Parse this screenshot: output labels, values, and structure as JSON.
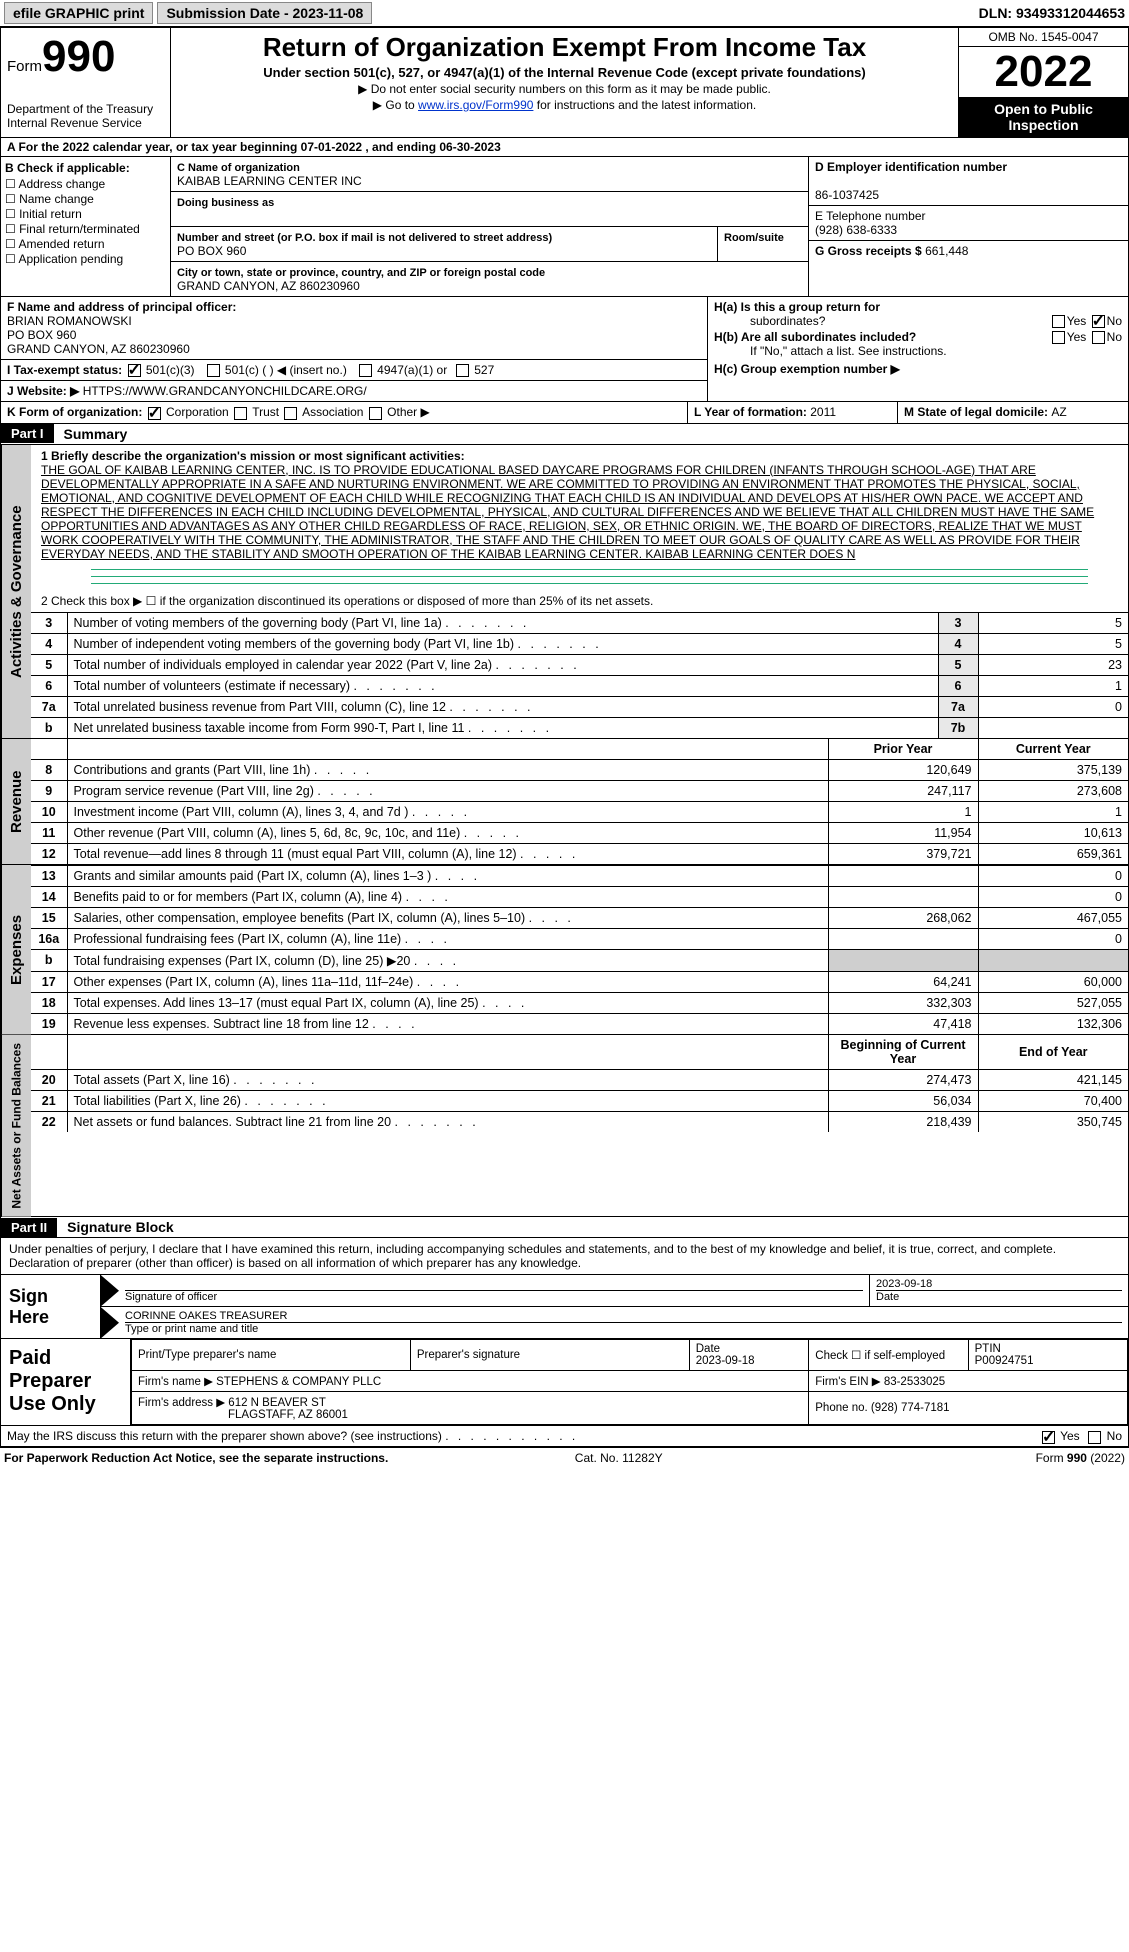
{
  "topbar": {
    "efile": "efile GRAPHIC print",
    "submission_label": "Submission Date - ",
    "submission_date": "2023-11-08",
    "dln_label": "DLN: ",
    "dln": "93493312044653"
  },
  "header": {
    "form_prefix": "Form",
    "form_no": "990",
    "dept": "Department of the Treasury",
    "irs": "Internal Revenue Service",
    "title": "Return of Organization Exempt From Income Tax",
    "sub": "Under section 501(c), 527, or 4947(a)(1) of the Internal Revenue Code (except private foundations)",
    "note1": "▶ Do not enter social security numbers on this form as it may be made public.",
    "note2_pre": "▶ Go to ",
    "note2_link": "www.irs.gov/Form990",
    "note2_post": " for instructions and the latest information.",
    "omb": "OMB No. 1545-0047",
    "year": "2022",
    "open": "Open to Public Inspection"
  },
  "sectionA": "A   For the 2022 calendar year, or tax year beginning 07-01-2022    , and ending 06-30-2023",
  "colB": {
    "hdr": "B Check if applicable:",
    "items": [
      "Address change",
      "Name change",
      "Initial return",
      "Final return/terminated",
      "Amended return",
      "Application pending"
    ]
  },
  "colC": {
    "name_lab": "C Name of organization",
    "name": "KAIBAB LEARNING CENTER INC",
    "dba_lab": "Doing business as",
    "dba": "",
    "addr_lab": "Number and street (or P.O. box if mail is not delivered to street address)",
    "addr": "PO BOX 960",
    "room_lab": "Room/suite",
    "city_lab": "City or town, state or province, country, and ZIP or foreign postal code",
    "city": "GRAND CANYON, AZ  860230960"
  },
  "colD": {
    "d_lab": "D Employer identification number",
    "ein": "86-1037425",
    "e_lab": "E Telephone number",
    "phone": "(928) 638-6333",
    "g_lab": "G Gross receipts $",
    "gross": "661,448"
  },
  "rowF": {
    "f_lab": "F Name and address of principal officer:",
    "name": "BRIAN ROMANOWSKI",
    "l1": "PO BOX 960",
    "l2": "GRAND CANYON, AZ  860230960"
  },
  "rowH": {
    "ha": "H(a)  Is this a group return for",
    "ha2": "subordinates?",
    "hb": "H(b)  Are all subordinates included?",
    "hbnote": "If \"No,\" attach a list. See instructions.",
    "hc": "H(c)  Group exemption number ▶"
  },
  "rowI": {
    "lab": "I   Tax-exempt status:",
    "o1": "501(c)(3)",
    "o2": "501(c) (   ) ◀ (insert no.)",
    "o3": "4947(a)(1) or",
    "o4": "527"
  },
  "rowJ": {
    "lab": "J   Website: ▶",
    "url": "HTTPS://WWW.GRANDCANYONCHILDCARE.ORG/"
  },
  "rowK": {
    "lab": "K Form of organization:",
    "corp": "Corporation",
    "trust": "Trust",
    "assoc": "Association",
    "other": "Other ▶",
    "l_lab": "L Year of formation: ",
    "l_val": "2011",
    "m_lab": "M State of legal domicile: ",
    "m_val": "AZ"
  },
  "part1": {
    "hdr": "Part I",
    "title": "Summary",
    "line1_lab": "1  Briefly describe the organization's mission or most significant activities:",
    "mission": "THE GOAL OF KAIBAB LEARNING CENTER, INC. IS TO PROVIDE EDUCATIONAL BASED DAYCARE PROGRAMS FOR CHILDREN (INFANTS THROUGH SCHOOL-AGE) THAT ARE DEVELOPMENTALLY APPROPRIATE IN A SAFE AND NURTURING ENVIRONMENT. WE ARE COMMITTED TO PROVIDING AN ENVIRONMENT THAT PROMOTES THE PHYSICAL, SOCIAL, EMOTIONAL, AND COGNITIVE DEVELOPMENT OF EACH CHILD WHILE RECOGNIZING THAT EACH CHILD IS AN INDIVIDUAL AND DEVELOPS AT HIS/HER OWN PACE. WE ACCEPT AND RESPECT THE DIFFERENCES IN EACH CHILD INCLUDING DEVELOPMENTAL, PHYSICAL, AND CULTURAL DIFFERENCES AND WE BELIEVE THAT ALL CHILDREN MUST HAVE THE SAME OPPORTUNITIES AND ADVANTAGES AS ANY OTHER CHILD REGARDLESS OF RACE, RELIGION, SEX, OR ETHNIC ORIGIN. WE, THE BOARD OF DIRECTORS, REALIZE THAT WE MUST WORK COOPERATIVELY WITH THE COMMUNITY, THE ADMINISTRATOR, THE STAFF AND THE CHILDREN TO MEET OUR GOALS OF QUALITY CARE AS WELL AS PROVIDE FOR THEIR EVERYDAY NEEDS, AND THE STABILITY AND SMOOTH OPERATION OF THE KAIBAB LEARNING CENTER. KAIBAB LEARNING CENTER DOES N",
    "line2": "2   Check this box ▶ ☐  if the organization discontinued its operations or disposed of more than 25% of its net assets.",
    "rows_ag": [
      {
        "n": "3",
        "lab": "Number of voting members of the governing body (Part VI, line 1a)",
        "box": "3",
        "val": "5"
      },
      {
        "n": "4",
        "lab": "Number of independent voting members of the governing body (Part VI, line 1b)",
        "box": "4",
        "val": "5"
      },
      {
        "n": "5",
        "lab": "Total number of individuals employed in calendar year 2022 (Part V, line 2a)",
        "box": "5",
        "val": "23"
      },
      {
        "n": "6",
        "lab": "Total number of volunteers (estimate if necessary)",
        "box": "6",
        "val": "1"
      },
      {
        "n": "7a",
        "lab": "Total unrelated business revenue from Part VIII, column (C), line 12",
        "box": "7a",
        "val": "0"
      },
      {
        "n": "b",
        "lab": "Net unrelated business taxable income from Form 990-T, Part I, line 11",
        "box": "7b",
        "val": ""
      }
    ],
    "prior_hdr": "Prior Year",
    "curr_hdr": "Current Year",
    "rev_rows": [
      {
        "n": "8",
        "lab": "Contributions and grants (Part VIII, line 1h)",
        "p": "120,649",
        "c": "375,139"
      },
      {
        "n": "9",
        "lab": "Program service revenue (Part VIII, line 2g)",
        "p": "247,117",
        "c": "273,608"
      },
      {
        "n": "10",
        "lab": "Investment income (Part VIII, column (A), lines 3, 4, and 7d )",
        "p": "1",
        "c": "1"
      },
      {
        "n": "11",
        "lab": "Other revenue (Part VIII, column (A), lines 5, 6d, 8c, 9c, 10c, and 11e)",
        "p": "11,954",
        "c": "10,613"
      },
      {
        "n": "12",
        "lab": "Total revenue—add lines 8 through 11 (must equal Part VIII, column (A), line 12)",
        "p": "379,721",
        "c": "659,361"
      }
    ],
    "exp_rows": [
      {
        "n": "13",
        "lab": "Grants and similar amounts paid (Part IX, column (A), lines 1–3 )",
        "p": "",
        "c": "0"
      },
      {
        "n": "14",
        "lab": "Benefits paid to or for members (Part IX, column (A), line 4)",
        "p": "",
        "c": "0"
      },
      {
        "n": "15",
        "lab": "Salaries, other compensation, employee benefits (Part IX, column (A), lines 5–10)",
        "p": "268,062",
        "c": "467,055"
      },
      {
        "n": "16a",
        "lab": "Professional fundraising fees (Part IX, column (A), line 11e)",
        "p": "",
        "c": "0"
      },
      {
        "n": "b",
        "lab": "Total fundraising expenses (Part IX, column (D), line 25) ▶20",
        "p": "shade",
        "c": "shade"
      },
      {
        "n": "17",
        "lab": "Other expenses (Part IX, column (A), lines 11a–11d, 11f–24e)",
        "p": "64,241",
        "c": "60,000"
      },
      {
        "n": "18",
        "lab": "Total expenses. Add lines 13–17 (must equal Part IX, column (A), line 25)",
        "p": "332,303",
        "c": "527,055"
      },
      {
        "n": "19",
        "lab": "Revenue less expenses. Subtract line 18 from line 12",
        "p": "47,418",
        "c": "132,306"
      }
    ],
    "bal_hdr_l": "Beginning of Current Year",
    "bal_hdr_r": "End of Year",
    "bal_rows": [
      {
        "n": "20",
        "lab": "Total assets (Part X, line 16)",
        "p": "274,473",
        "c": "421,145"
      },
      {
        "n": "21",
        "lab": "Total liabilities (Part X, line 26)",
        "p": "56,034",
        "c": "70,400"
      },
      {
        "n": "22",
        "lab": "Net assets or fund balances. Subtract line 21 from line 20",
        "p": "218,439",
        "c": "350,745"
      }
    ],
    "vlab_ag": "Activities & Governance",
    "vlab_rev": "Revenue",
    "vlab_exp": "Expenses",
    "vlab_bal": "Net Assets or Fund Balances"
  },
  "part2": {
    "hdr": "Part II",
    "title": "Signature Block",
    "decl": "Under penalties of perjury, I declare that I have examined this return, including accompanying schedules and statements, and to the best of my knowledge and belief, it is true, correct, and complete. Declaration of preparer (other than officer) is based on all information of which preparer has any knowledge.",
    "sign_here": "Sign Here",
    "sig_of": "Signature of officer",
    "date": "Date",
    "sig_date": "2023-09-18",
    "name_title": "CORINNE OAKES  TREASURER",
    "name_lab": "Type or print name and title",
    "paid": "Paid Preparer Use Only",
    "pp_name_lab": "Print/Type preparer's name",
    "pp_sig_lab": "Preparer's signature",
    "pp_date_lab": "Date",
    "pp_date": "2023-09-18",
    "pp_self": "Check ☐ if self-employed",
    "ptin_lab": "PTIN",
    "ptin": "P00924751",
    "firm_name_lab": "Firm's name    ▶",
    "firm_name": "STEPHENS & COMPANY PLLC",
    "firm_ein_lab": "Firm's EIN ▶",
    "firm_ein": "83-2533025",
    "firm_addr_lab": "Firm's address ▶",
    "firm_addr1": "612 N BEAVER ST",
    "firm_addr2": "FLAGSTAFF, AZ  86001",
    "phone_lab": "Phone no.",
    "phone": "(928) 774-7181",
    "discuss": "May the IRS discuss this return with the preparer shown above? (see instructions)",
    "yes": "Yes",
    "no": "No"
  },
  "footer": {
    "left": "For Paperwork Reduction Act Notice, see the separate instructions.",
    "mid": "Cat. No. 11282Y",
    "right": "Form 990 (2022)"
  },
  "colors": {
    "black": "#000000",
    "grey": "#cfcfcf",
    "link": "#0033cc",
    "greenrule": "#2a7a4a"
  }
}
